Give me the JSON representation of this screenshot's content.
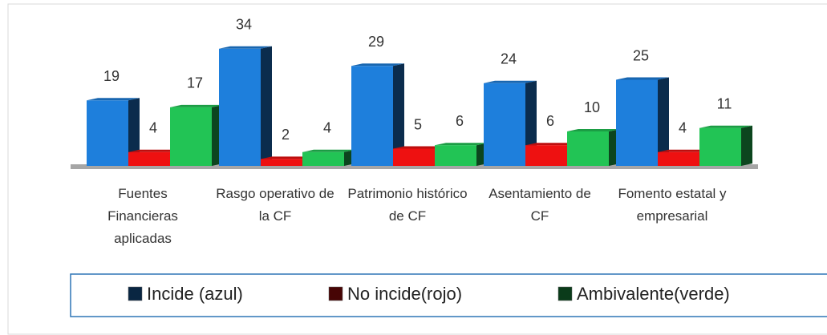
{
  "chart_data": {
    "type": "bar3d",
    "categories": [
      "Fuentes Financieras aplicadas",
      "Rasgo operativo de la CF",
      "Patrimonio histórico de CF",
      "Asentamiento de CF",
      "Fomento estatal y empresarial"
    ],
    "series": [
      {
        "name": "Incide (azul)",
        "color": "#1e7fdc",
        "values": [
          19,
          34,
          29,
          24,
          25
        ]
      },
      {
        "name": "No incide(rojo)",
        "color": "#ee1111",
        "values": [
          4,
          2,
          5,
          6,
          4
        ]
      },
      {
        "name": "Ambivalente(verde)",
        "color": "#22c455",
        "values": [
          17,
          4,
          6,
          10,
          11
        ]
      }
    ],
    "legend": "bottom"
  }
}
